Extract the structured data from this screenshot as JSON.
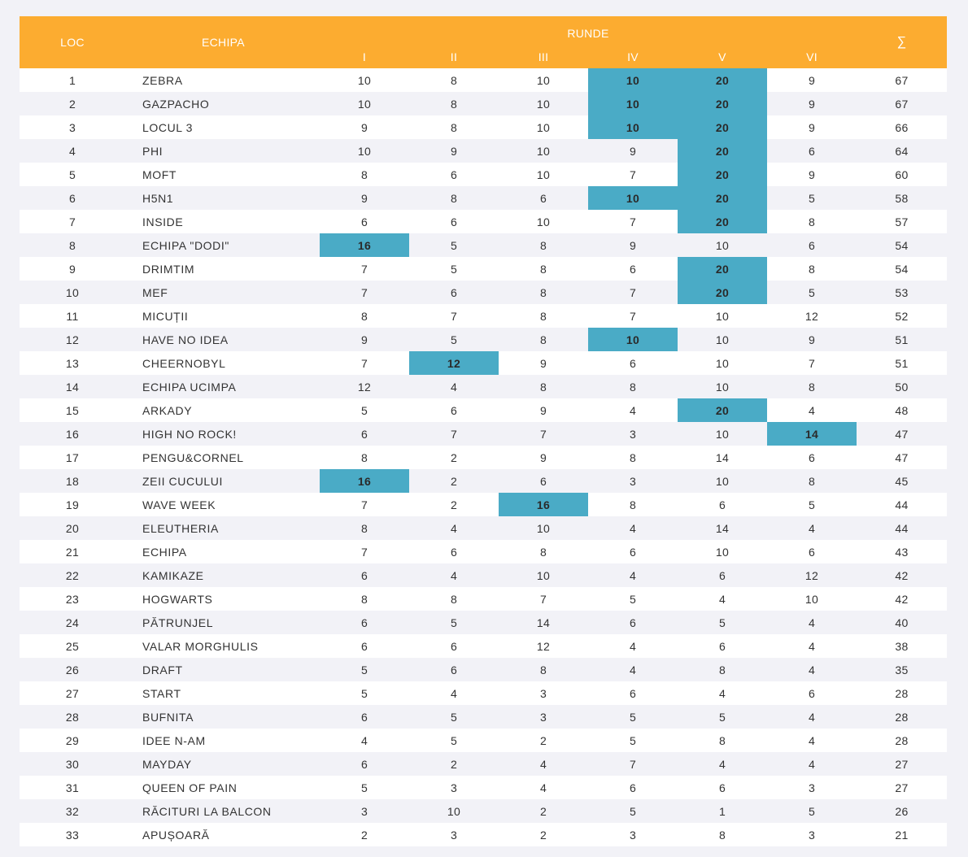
{
  "header": {
    "loc": "LOC",
    "team": "ECHIPA",
    "runde": "RUNDE",
    "rounds": [
      "I",
      "II",
      "III",
      "IV",
      "V",
      "VI"
    ],
    "sum": "∑"
  },
  "colors": {
    "header_bg": "#fcac30",
    "highlight": "#4aabc6",
    "row_alt": "#f2f2f7",
    "row": "#ffffff"
  },
  "rows": [
    {
      "loc": "1",
      "team": "ZEBRA",
      "rounds": [
        {
          "v": "10",
          "h": false
        },
        {
          "v": "8",
          "h": false
        },
        {
          "v": "10",
          "h": false
        },
        {
          "v": "10",
          "h": true
        },
        {
          "v": "20",
          "h": true
        },
        {
          "v": "9",
          "h": false
        }
      ],
      "sum": "67"
    },
    {
      "loc": "2",
      "team": "GAZPACHO",
      "rounds": [
        {
          "v": "10",
          "h": false
        },
        {
          "v": "8",
          "h": false
        },
        {
          "v": "10",
          "h": false
        },
        {
          "v": "10",
          "h": true
        },
        {
          "v": "20",
          "h": true
        },
        {
          "v": "9",
          "h": false
        }
      ],
      "sum": "67"
    },
    {
      "loc": "3",
      "team": "LOCUL 3",
      "rounds": [
        {
          "v": "9",
          "h": false
        },
        {
          "v": "8",
          "h": false
        },
        {
          "v": "10",
          "h": false
        },
        {
          "v": "10",
          "h": true
        },
        {
          "v": "20",
          "h": true
        },
        {
          "v": "9",
          "h": false
        }
      ],
      "sum": "66"
    },
    {
      "loc": "4",
      "team": "PHI",
      "rounds": [
        {
          "v": "10",
          "h": false
        },
        {
          "v": "9",
          "h": false
        },
        {
          "v": "10",
          "h": false
        },
        {
          "v": "9",
          "h": false
        },
        {
          "v": "20",
          "h": true
        },
        {
          "v": "6",
          "h": false
        }
      ],
      "sum": "64"
    },
    {
      "loc": "5",
      "team": "MOFT",
      "rounds": [
        {
          "v": "8",
          "h": false
        },
        {
          "v": "6",
          "h": false
        },
        {
          "v": "10",
          "h": false
        },
        {
          "v": "7",
          "h": false
        },
        {
          "v": "20",
          "h": true
        },
        {
          "v": "9",
          "h": false
        }
      ],
      "sum": "60"
    },
    {
      "loc": "6",
      "team": "H5N1",
      "rounds": [
        {
          "v": "9",
          "h": false
        },
        {
          "v": "8",
          "h": false
        },
        {
          "v": "6",
          "h": false
        },
        {
          "v": "10",
          "h": true
        },
        {
          "v": "20",
          "h": true
        },
        {
          "v": "5",
          "h": false
        }
      ],
      "sum": "58"
    },
    {
      "loc": "7",
      "team": "INSIDE",
      "rounds": [
        {
          "v": "6",
          "h": false
        },
        {
          "v": "6",
          "h": false
        },
        {
          "v": "10",
          "h": false
        },
        {
          "v": "7",
          "h": false
        },
        {
          "v": "20",
          "h": true
        },
        {
          "v": "8",
          "h": false
        }
      ],
      "sum": "57"
    },
    {
      "loc": "8",
      "team": "ECHIPA \"DODI\"",
      "rounds": [
        {
          "v": "16",
          "h": true
        },
        {
          "v": "5",
          "h": false
        },
        {
          "v": "8",
          "h": false
        },
        {
          "v": "9",
          "h": false
        },
        {
          "v": "10",
          "h": false
        },
        {
          "v": "6",
          "h": false
        }
      ],
      "sum": "54"
    },
    {
      "loc": "9",
      "team": "DRIMTIM",
      "rounds": [
        {
          "v": "7",
          "h": false
        },
        {
          "v": "5",
          "h": false
        },
        {
          "v": "8",
          "h": false
        },
        {
          "v": "6",
          "h": false
        },
        {
          "v": "20",
          "h": true
        },
        {
          "v": "8",
          "h": false
        }
      ],
      "sum": "54"
    },
    {
      "loc": "10",
      "team": "MEF",
      "rounds": [
        {
          "v": "7",
          "h": false
        },
        {
          "v": "6",
          "h": false
        },
        {
          "v": "8",
          "h": false
        },
        {
          "v": "7",
          "h": false
        },
        {
          "v": "20",
          "h": true
        },
        {
          "v": "5",
          "h": false
        }
      ],
      "sum": "53"
    },
    {
      "loc": "11",
      "team": "MICUȚII",
      "rounds": [
        {
          "v": "8",
          "h": false
        },
        {
          "v": "7",
          "h": false
        },
        {
          "v": "8",
          "h": false
        },
        {
          "v": "7",
          "h": false
        },
        {
          "v": "10",
          "h": false
        },
        {
          "v": "12",
          "h": false
        }
      ],
      "sum": "52"
    },
    {
      "loc": "12",
      "team": "HAVE NO IDEA",
      "rounds": [
        {
          "v": "9",
          "h": false
        },
        {
          "v": "5",
          "h": false
        },
        {
          "v": "8",
          "h": false
        },
        {
          "v": "10",
          "h": true
        },
        {
          "v": "10",
          "h": false
        },
        {
          "v": "9",
          "h": false
        }
      ],
      "sum": "51"
    },
    {
      "loc": "13",
      "team": "CHEERNOBYL",
      "rounds": [
        {
          "v": "7",
          "h": false
        },
        {
          "v": "12",
          "h": true
        },
        {
          "v": "9",
          "h": false
        },
        {
          "v": "6",
          "h": false
        },
        {
          "v": "10",
          "h": false
        },
        {
          "v": "7",
          "h": false
        }
      ],
      "sum": "51"
    },
    {
      "loc": "14",
      "team": "ECHIPA UCIMPA",
      "rounds": [
        {
          "v": "12",
          "h": false
        },
        {
          "v": "4",
          "h": false
        },
        {
          "v": "8",
          "h": false
        },
        {
          "v": "8",
          "h": false
        },
        {
          "v": "10",
          "h": false
        },
        {
          "v": "8",
          "h": false
        }
      ],
      "sum": "50"
    },
    {
      "loc": "15",
      "team": "ARKADY",
      "rounds": [
        {
          "v": "5",
          "h": false
        },
        {
          "v": "6",
          "h": false
        },
        {
          "v": "9",
          "h": false
        },
        {
          "v": "4",
          "h": false
        },
        {
          "v": "20",
          "h": true
        },
        {
          "v": "4",
          "h": false
        }
      ],
      "sum": "48"
    },
    {
      "loc": "16",
      "team": "HIGH NO ROCK!",
      "rounds": [
        {
          "v": "6",
          "h": false
        },
        {
          "v": "7",
          "h": false
        },
        {
          "v": "7",
          "h": false
        },
        {
          "v": "3",
          "h": false
        },
        {
          "v": "10",
          "h": false
        },
        {
          "v": "14",
          "h": true
        }
      ],
      "sum": "47"
    },
    {
      "loc": "17",
      "team": "PENGU&CORNEL",
      "rounds": [
        {
          "v": "8",
          "h": false
        },
        {
          "v": "2",
          "h": false
        },
        {
          "v": "9",
          "h": false
        },
        {
          "v": "8",
          "h": false
        },
        {
          "v": "14",
          "h": false
        },
        {
          "v": "6",
          "h": false
        }
      ],
      "sum": "47"
    },
    {
      "loc": "18",
      "team": "ZEII CUCULUI",
      "rounds": [
        {
          "v": "16",
          "h": true
        },
        {
          "v": "2",
          "h": false
        },
        {
          "v": "6",
          "h": false
        },
        {
          "v": "3",
          "h": false
        },
        {
          "v": "10",
          "h": false
        },
        {
          "v": "8",
          "h": false
        }
      ],
      "sum": "45"
    },
    {
      "loc": "19",
      "team": "WAVE WEEK",
      "rounds": [
        {
          "v": "7",
          "h": false
        },
        {
          "v": "2",
          "h": false
        },
        {
          "v": "16",
          "h": true
        },
        {
          "v": "8",
          "h": false
        },
        {
          "v": "6",
          "h": false
        },
        {
          "v": "5",
          "h": false
        }
      ],
      "sum": "44"
    },
    {
      "loc": "20",
      "team": "ELEUTHERIA",
      "rounds": [
        {
          "v": "8",
          "h": false
        },
        {
          "v": "4",
          "h": false
        },
        {
          "v": "10",
          "h": false
        },
        {
          "v": "4",
          "h": false
        },
        {
          "v": "14",
          "h": false
        },
        {
          "v": "4",
          "h": false
        }
      ],
      "sum": "44"
    },
    {
      "loc": "21",
      "team": "ECHIPA",
      "rounds": [
        {
          "v": "7",
          "h": false
        },
        {
          "v": "6",
          "h": false
        },
        {
          "v": "8",
          "h": false
        },
        {
          "v": "6",
          "h": false
        },
        {
          "v": "10",
          "h": false
        },
        {
          "v": "6",
          "h": false
        }
      ],
      "sum": "43"
    },
    {
      "loc": "22",
      "team": "KAMIKAZE",
      "rounds": [
        {
          "v": "6",
          "h": false
        },
        {
          "v": "4",
          "h": false
        },
        {
          "v": "10",
          "h": false
        },
        {
          "v": "4",
          "h": false
        },
        {
          "v": "6",
          "h": false
        },
        {
          "v": "12",
          "h": false
        }
      ],
      "sum": "42"
    },
    {
      "loc": "23",
      "team": "HOGWARTS",
      "rounds": [
        {
          "v": "8",
          "h": false
        },
        {
          "v": "8",
          "h": false
        },
        {
          "v": "7",
          "h": false
        },
        {
          "v": "5",
          "h": false
        },
        {
          "v": "4",
          "h": false
        },
        {
          "v": "10",
          "h": false
        }
      ],
      "sum": "42"
    },
    {
      "loc": "24",
      "team": "PĂTRUNJEL",
      "rounds": [
        {
          "v": "6",
          "h": false
        },
        {
          "v": "5",
          "h": false
        },
        {
          "v": "14",
          "h": false
        },
        {
          "v": "6",
          "h": false
        },
        {
          "v": "5",
          "h": false
        },
        {
          "v": "4",
          "h": false
        }
      ],
      "sum": "40"
    },
    {
      "loc": "25",
      "team": "VALAR MORGHULIS",
      "rounds": [
        {
          "v": "6",
          "h": false
        },
        {
          "v": "6",
          "h": false
        },
        {
          "v": "12",
          "h": false
        },
        {
          "v": "4",
          "h": false
        },
        {
          "v": "6",
          "h": false
        },
        {
          "v": "4",
          "h": false
        }
      ],
      "sum": "38"
    },
    {
      "loc": "26",
      "team": "DRAFT",
      "rounds": [
        {
          "v": "5",
          "h": false
        },
        {
          "v": "6",
          "h": false
        },
        {
          "v": "8",
          "h": false
        },
        {
          "v": "4",
          "h": false
        },
        {
          "v": "8",
          "h": false
        },
        {
          "v": "4",
          "h": false
        }
      ],
      "sum": "35"
    },
    {
      "loc": "27",
      "team": "START",
      "rounds": [
        {
          "v": "5",
          "h": false
        },
        {
          "v": "4",
          "h": false
        },
        {
          "v": "3",
          "h": false
        },
        {
          "v": "6",
          "h": false
        },
        {
          "v": "4",
          "h": false
        },
        {
          "v": "6",
          "h": false
        }
      ],
      "sum": "28"
    },
    {
      "loc": "28",
      "team": "BUFNITA",
      "rounds": [
        {
          "v": "6",
          "h": false
        },
        {
          "v": "5",
          "h": false
        },
        {
          "v": "3",
          "h": false
        },
        {
          "v": "5",
          "h": false
        },
        {
          "v": "5",
          "h": false
        },
        {
          "v": "4",
          "h": false
        }
      ],
      "sum": "28"
    },
    {
      "loc": "29",
      "team": "IDEE N-AM",
      "rounds": [
        {
          "v": "4",
          "h": false
        },
        {
          "v": "5",
          "h": false
        },
        {
          "v": "2",
          "h": false
        },
        {
          "v": "5",
          "h": false
        },
        {
          "v": "8",
          "h": false
        },
        {
          "v": "4",
          "h": false
        }
      ],
      "sum": "28"
    },
    {
      "loc": "30",
      "team": "MAYDAY",
      "rounds": [
        {
          "v": "6",
          "h": false
        },
        {
          "v": "2",
          "h": false
        },
        {
          "v": "4",
          "h": false
        },
        {
          "v": "7",
          "h": false
        },
        {
          "v": "4",
          "h": false
        },
        {
          "v": "4",
          "h": false
        }
      ],
      "sum": "27"
    },
    {
      "loc": "31",
      "team": "QUEEN OF PAIN",
      "rounds": [
        {
          "v": "5",
          "h": false
        },
        {
          "v": "3",
          "h": false
        },
        {
          "v": "4",
          "h": false
        },
        {
          "v": "6",
          "h": false
        },
        {
          "v": "6",
          "h": false
        },
        {
          "v": "3",
          "h": false
        }
      ],
      "sum": "27"
    },
    {
      "loc": "32",
      "team": "RĂCITURI LA BALCON",
      "rounds": [
        {
          "v": "3",
          "h": false
        },
        {
          "v": "10",
          "h": false
        },
        {
          "v": "2",
          "h": false
        },
        {
          "v": "5",
          "h": false
        },
        {
          "v": "1",
          "h": false
        },
        {
          "v": "5",
          "h": false
        }
      ],
      "sum": "26"
    },
    {
      "loc": "33",
      "team": "APUȘOARĂ",
      "rounds": [
        {
          "v": "2",
          "h": false
        },
        {
          "v": "3",
          "h": false
        },
        {
          "v": "2",
          "h": false
        },
        {
          "v": "3",
          "h": false
        },
        {
          "v": "8",
          "h": false
        },
        {
          "v": "3",
          "h": false
        }
      ],
      "sum": "21"
    }
  ]
}
